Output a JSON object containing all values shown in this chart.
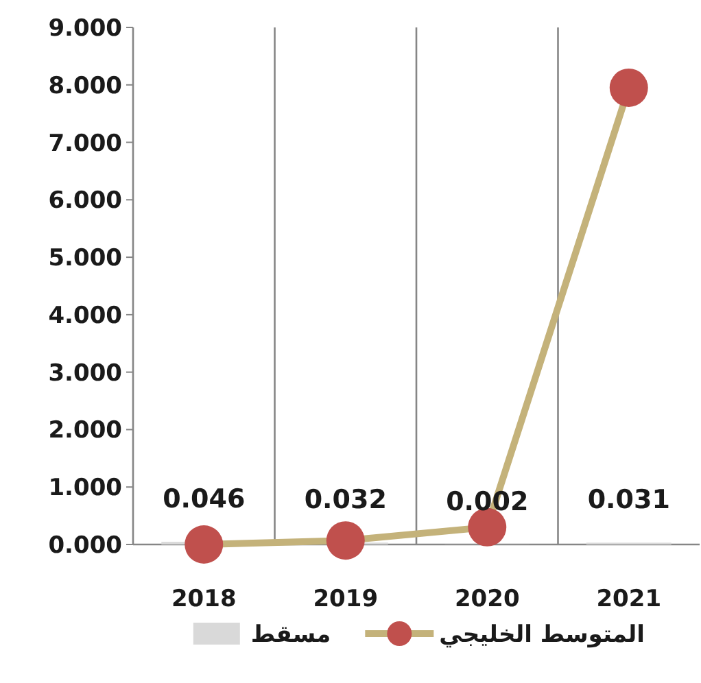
{
  "chart_data": {
    "type": "bar",
    "categories": [
      "2018",
      "2019",
      "2020",
      "2021"
    ],
    "series": [
      {
        "name": "المتوسط الخليجي",
        "type": "line",
        "color": "#c4b27a",
        "colors": [
          "#c0504d",
          "#c0504d",
          "#c0504d",
          "#c0504d"
        ],
        "values": [
          0.0,
          0.07,
          0.3,
          7.95
        ]
      },
      {
        "name": "مسقط",
        "color": "#d9d9d9",
        "values": [
          0.046,
          0.032,
          0.002,
          0.031
        ],
        "value_labels": [
          "0.046",
          "0.032",
          "0.002",
          "0.031"
        ]
      }
    ],
    "ylim": [
      0,
      9
    ],
    "yticks": [
      {
        "value": 0,
        "label": "0.000"
      },
      {
        "value": 1,
        "label": "1.000"
      },
      {
        "value": 2,
        "label": "2.000"
      },
      {
        "value": 3,
        "label": "3.000"
      },
      {
        "value": 4,
        "label": "4.000"
      },
      {
        "value": 5,
        "label": "5.000"
      },
      {
        "value": 6,
        "label": "6.000"
      },
      {
        "value": 7,
        "label": "7.000"
      },
      {
        "value": 8,
        "label": "8.000"
      },
      {
        "value": 9,
        "label": "9.000"
      }
    ],
    "grid": "x",
    "marker": "circle",
    "legend": "bottom"
  }
}
